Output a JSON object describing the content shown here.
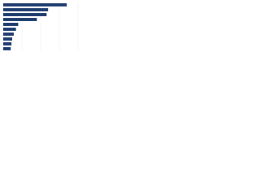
{
  "chart_data": {
    "type": "bar",
    "orientation": "horizontal",
    "categories": [
      null,
      null,
      null,
      null,
      null,
      null,
      null,
      null,
      null,
      null
    ],
    "values": [
      85,
      60,
      58,
      45,
      20,
      17,
      14,
      12,
      11,
      10
    ],
    "color": "#1f3c6e",
    "xlim": [
      0,
      100
    ],
    "grid": true
  }
}
